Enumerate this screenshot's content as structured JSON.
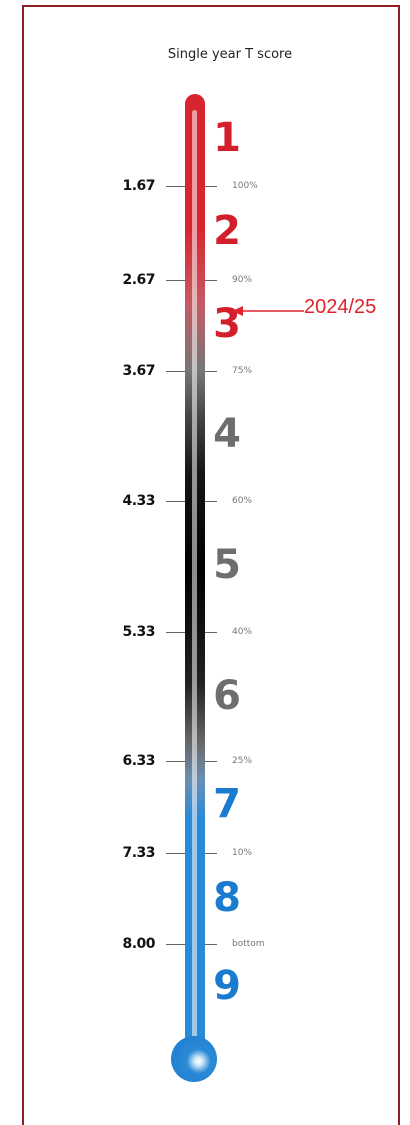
{
  "title": "Single year T score",
  "scale": [
    {
      "score": "1.67",
      "pct": "100%"
    },
    {
      "score": "2.67",
      "pct": "90%"
    },
    {
      "score": "3.67",
      "pct": "75%"
    },
    {
      "score": "4.33",
      "pct": "60%"
    },
    {
      "score": "5.33",
      "pct": "40%"
    },
    {
      "score": "6.33",
      "pct": "25%"
    },
    {
      "score": "7.33",
      "pct": "10%"
    },
    {
      "score": "8.00",
      "pct": "bottom"
    }
  ],
  "bands": [
    {
      "label": "1",
      "color": "#d21f2b"
    },
    {
      "label": "2",
      "color": "#d21f2b"
    },
    {
      "label": "3",
      "color": "#d21f2b"
    },
    {
      "label": "4",
      "color": "#6e6e6e"
    },
    {
      "label": "5",
      "color": "#6e6e6e"
    },
    {
      "label": "6",
      "color": "#6e6e6e"
    },
    {
      "label": "7",
      "color": "#1a7bcf"
    },
    {
      "label": "8",
      "color": "#1a7bcf"
    },
    {
      "label": "9",
      "color": "#1a7bcf"
    }
  ],
  "marker": {
    "label": "2024/25",
    "band": "3",
    "color": "#e0242c"
  }
}
